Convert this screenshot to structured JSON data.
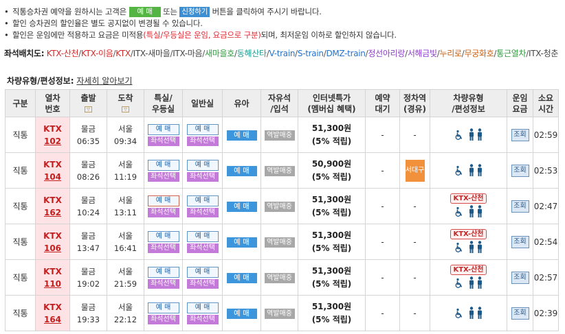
{
  "notices": [
    {
      "pre": "직통승차권 예약을 원하시는 고객은",
      "btn_green": "예 매",
      "mid": "또는",
      "btn_blue": "신청하기",
      "post": "버튼을 클릭하여 주시기 바랍니다."
    },
    {
      "text": "할인 승차권의 할인율은 별도 공지없이 변경될 수 있습니다."
    },
    {
      "pre": "할인은 운임에만 적용하고 요금은 미적용",
      "red": "(특실/우등실은 운임, 요금으로 구분)",
      "post": "되며, 최저운임 이하로 할인하지 않습니다."
    }
  ],
  "seat_layout": {
    "label": "좌석배치도:",
    "items": [
      {
        "text": "KTX-산천",
        "color": "#d52a2a"
      },
      {
        "text": "KTX-이음",
        "color": "#d52a2a"
      },
      {
        "text": "KTX",
        "color": "#d52a2a"
      },
      {
        "text": "ITX-새마을",
        "color": "#444444"
      },
      {
        "text": "ITX-마음",
        "color": "#444444"
      },
      {
        "text": "새마을호",
        "color": "#2c9a3c"
      },
      {
        "text": "동해산타",
        "color": "#1d9b90"
      },
      {
        "text": "V-train",
        "color": "#2473c9"
      },
      {
        "text": "S-train",
        "color": "#2473c9"
      },
      {
        "text": "DMZ-train",
        "color": "#2473c9"
      },
      {
        "text": "정선아리랑",
        "color": "#8b3fc8"
      },
      {
        "text": "서해금빛",
        "color": "#8b3fc8"
      },
      {
        "text": "누리로",
        "color": "#c85f10"
      },
      {
        "text": "무궁화호",
        "color": "#c85f10"
      },
      {
        "text": "통근열차",
        "color": "#2c9a3c"
      },
      {
        "text": "ITX-청춘",
        "color": "#444444"
      }
    ]
  },
  "composition": {
    "label": "차량유형/편성정보:",
    "link": "자세히 알아보기"
  },
  "headers": {
    "type": "구분",
    "train_1": "열차",
    "train_2": "번호",
    "dep": "출발",
    "arr": "도착",
    "special_1": "특실/",
    "special_2": "우등실",
    "general": "일반실",
    "infant": "유아",
    "free_1": "자유석",
    "free_2": "/입석",
    "internet_1": "인터넷특가",
    "internet_2": "(멤버십 혜택)",
    "wait_1": "예약",
    "wait_2": "대기",
    "stop_1": "정차역",
    "stop_2": "(경유)",
    "car_1": "차량유형",
    "car_2": "/편성정보",
    "fare_1": "운임",
    "fare_2": "요금",
    "dur_1": "소요",
    "dur_2": "시간",
    "sort_icon": "▽"
  },
  "buttons": {
    "buy": "예 매",
    "seat": "좌석선택",
    "infant": "예 매",
    "standing": "역발매중",
    "view": "조회"
  },
  "rows": [
    {
      "type": "직통",
      "train": "KTX",
      "no": "102",
      "dep_st": "물금",
      "dep_time": "06:35",
      "arr_st": "서울",
      "arr_time": "09:34",
      "price": "51,300원",
      "benefit": "(5% 적립)",
      "wait": "-",
      "stop": "-",
      "ktx_badge": "",
      "duration": "02:59"
    },
    {
      "type": "직통",
      "train": "KTX",
      "no": "104",
      "dep_st": "물금",
      "dep_time": "08:26",
      "arr_st": "서울",
      "arr_time": "11:19",
      "price": "50,900원",
      "benefit": "(5% 적립)",
      "wait": "-",
      "stop": "서대구",
      "ktx_badge": "",
      "duration": "02:53"
    },
    {
      "type": "직통",
      "train": "KTX",
      "no": "162",
      "dep_st": "물금",
      "dep_time": "10:24",
      "arr_st": "서울",
      "arr_time": "13:11",
      "price": "51,300원",
      "benefit": "(5% 적립)",
      "wait": "-",
      "stop": "-",
      "ktx_badge": "KTX-산천",
      "duration": "02:47"
    },
    {
      "type": "직통",
      "train": "KTX",
      "no": "106",
      "dep_st": "물금",
      "dep_time": "13:47",
      "arr_st": "서울",
      "arr_time": "16:41",
      "price": "51,300원",
      "benefit": "(5% 적립)",
      "wait": "-",
      "stop": "-",
      "ktx_badge": "KTX-산천",
      "duration": "02:54"
    },
    {
      "type": "직통",
      "train": "KTX",
      "no": "110",
      "dep_st": "물금",
      "dep_time": "19:02",
      "arr_st": "서울",
      "arr_time": "21:59",
      "price": "51,300원",
      "benefit": "(5% 적립)",
      "wait": "-",
      "stop": "-",
      "ktx_badge": "KTX-산천",
      "duration": "02:57"
    },
    {
      "type": "직통",
      "train": "KTX",
      "no": "164",
      "dep_st": "물금",
      "dep_time": "19:33",
      "arr_st": "서울",
      "arr_time": "22:12",
      "price": "51,300원",
      "benefit": "(5% 적립)",
      "wait": "-",
      "stop": "-",
      "ktx_badge": "",
      "duration": "02:39"
    }
  ]
}
